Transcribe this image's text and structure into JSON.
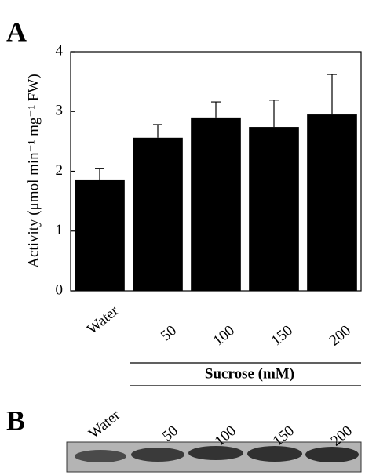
{
  "chart_data": {
    "type": "bar",
    "panel_label": "A",
    "y_label": "Activity (μmol min⁻¹ mg⁻¹ FW)",
    "categories": [
      "Water",
      "50",
      "100",
      "150",
      "200"
    ],
    "values": [
      1.85,
      2.56,
      2.9,
      2.74,
      2.95
    ],
    "errors": [
      0.2,
      0.22,
      0.26,
      0.45,
      0.67
    ],
    "color": "#000000",
    "x_group_label": "Sucrose (mM)",
    "ylim": [
      0,
      4
    ],
    "yticks": [
      0,
      1,
      2,
      3,
      4
    ]
  },
  "gel": {
    "panel_label": "B",
    "lanes": [
      "Water",
      "50",
      "100",
      "150",
      "200"
    ]
  }
}
